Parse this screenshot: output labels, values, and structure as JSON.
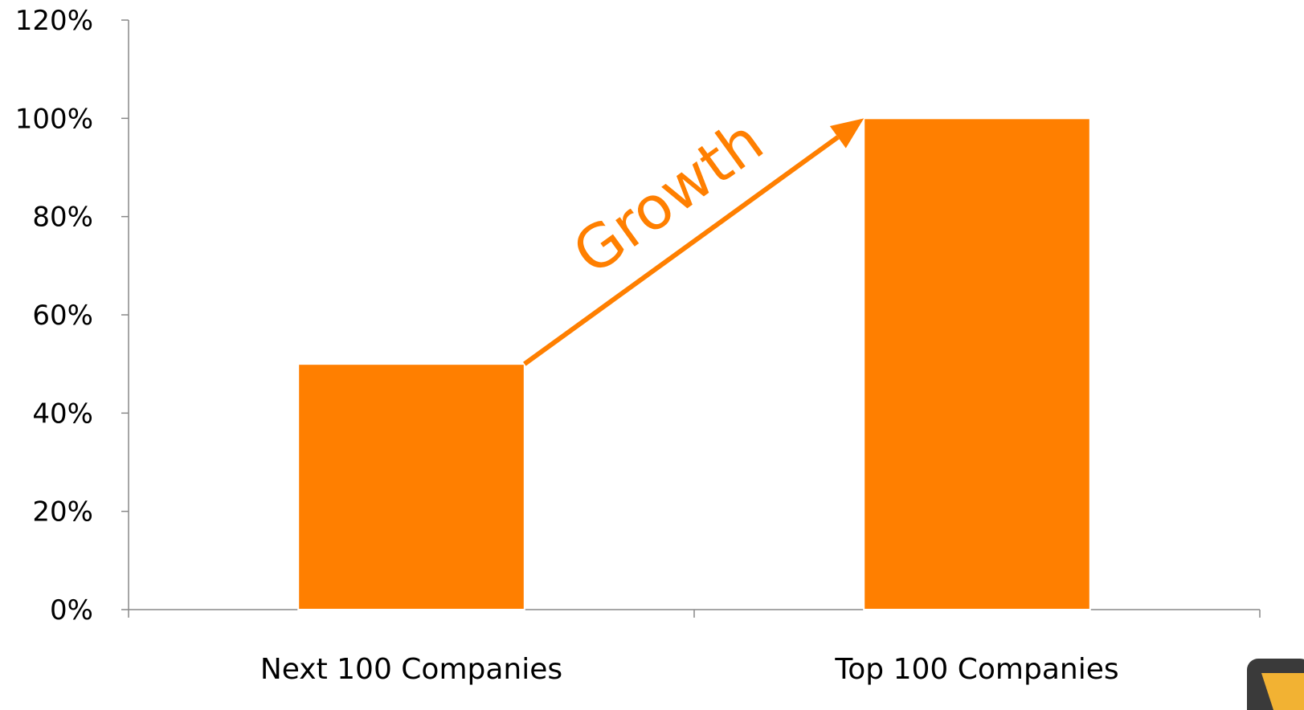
{
  "chart_data": {
    "type": "bar",
    "categories": [
      "Next 100 Companies",
      "Top 100 Companies"
    ],
    "values": [
      50,
      100
    ],
    "ylim": [
      0,
      120
    ],
    "yticks": [
      "0%",
      "20%",
      "40%",
      "60%",
      "80%",
      "100%",
      "120%"
    ],
    "grid": false,
    "annotation": "Growth",
    "colors": {
      "bar": "#ff7f00",
      "annotation": "#ff7f00",
      "axis": "#888888"
    }
  }
}
